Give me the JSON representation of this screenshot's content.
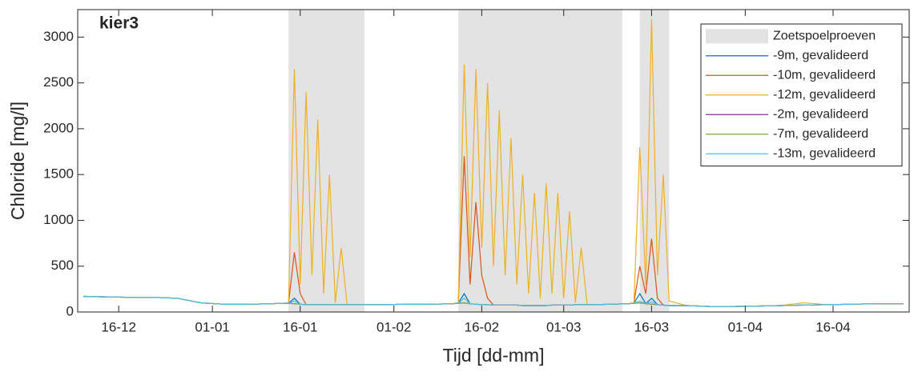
{
  "chart_data": {
    "type": "line",
    "title": "kier3",
    "xlabel": "Tijd [dd-mm]",
    "ylabel": "Chloride [mg/l]",
    "x": [
      "10-12",
      "14-12",
      "18-12",
      "22-12",
      "26-12",
      "30-12",
      "03-01",
      "07-01",
      "11-01",
      "13-01",
      "14-01",
      "15-01",
      "16-01",
      "17-01",
      "18-01",
      "19-01",
      "20-01",
      "21-01",
      "22-01",
      "23-01",
      "24-01",
      "26-01",
      "30-01",
      "03-02",
      "07-02",
      "11-02",
      "12-02",
      "13-02",
      "14-02",
      "15-02",
      "16-02",
      "17-02",
      "18-02",
      "19-02",
      "20-02",
      "21-02",
      "22-02",
      "23-02",
      "24-02",
      "25-02",
      "26-02",
      "27-02",
      "28-02",
      "29-02",
      "01-03",
      "02-03",
      "03-03",
      "04-03",
      "05-03",
      "06-03",
      "09-03",
      "12-03",
      "13-03",
      "14-03",
      "15-03",
      "16-03",
      "17-03",
      "18-03",
      "19-03",
      "22-03",
      "26-03",
      "30-03",
      "03-04",
      "07-04",
      "11-04",
      "15-04",
      "19-04",
      "23-04",
      "28-04"
    ],
    "xlim": [
      "09-12",
      "29-04"
    ],
    "xticks": [
      "16-12",
      "01-01",
      "16-01",
      "01-02",
      "16-02",
      "01-03",
      "16-03",
      "01-04",
      "16-04"
    ],
    "ylim": [
      0,
      3300
    ],
    "yticks": [
      0,
      500,
      1000,
      1500,
      2000,
      2500,
      3000
    ],
    "legend": "northeast",
    "shaded": {
      "name": "Zoetspoelproeven",
      "color": "#e3e3e3",
      "spans": [
        [
          "14-01",
          "27-01"
        ],
        [
          "12-02",
          "11-03"
        ],
        [
          "14-03",
          "19-03"
        ]
      ]
    },
    "series": [
      {
        "name": "-9m, gevalideerd",
        "color": "#0072bd",
        "values": [
          170,
          165,
          160,
          160,
          150,
          100,
          85,
          85,
          90,
          95,
          95,
          150,
          85,
          80,
          80,
          80,
          80,
          80,
          80,
          80,
          80,
          80,
          80,
          85,
          85,
          90,
          95,
          200,
          90,
          85,
          80,
          80,
          75,
          75,
          75,
          75,
          75,
          70,
          70,
          70,
          70,
          70,
          75,
          75,
          75,
          75,
          80,
          80,
          80,
          80,
          85,
          90,
          95,
          200,
          90,
          150,
          80,
          75,
          70,
          70,
          60,
          60,
          65,
          70,
          75,
          80,
          85,
          90,
          90
        ]
      },
      {
        "name": "-10m, gevalideerd",
        "color": "#d95319",
        "values": [
          170,
          165,
          160,
          160,
          150,
          100,
          85,
          85,
          90,
          95,
          100,
          650,
          200,
          80,
          80,
          80,
          80,
          80,
          80,
          80,
          80,
          80,
          80,
          85,
          85,
          90,
          100,
          1700,
          300,
          1200,
          400,
          150,
          75,
          75,
          75,
          75,
          75,
          70,
          70,
          70,
          70,
          70,
          75,
          75,
          75,
          75,
          80,
          80,
          80,
          80,
          85,
          90,
          100,
          500,
          200,
          800,
          150,
          75,
          70,
          70,
          60,
          60,
          65,
          70,
          75,
          80,
          85,
          90,
          90
        ]
      },
      {
        "name": "-12m, gevalideerd",
        "color": "#edb120",
        "values": [
          170,
          165,
          160,
          160,
          150,
          100,
          85,
          85,
          90,
          95,
          100,
          2650,
          300,
          2400,
          400,
          2100,
          200,
          1500,
          100,
          700,
          80,
          80,
          80,
          85,
          85,
          90,
          100,
          2700,
          600,
          2650,
          700,
          2500,
          500,
          2200,
          400,
          1900,
          300,
          1500,
          200,
          1300,
          150,
          1400,
          200,
          1300,
          150,
          1100,
          100,
          700,
          80,
          80,
          85,
          90,
          100,
          1800,
          300,
          3200,
          400,
          1500,
          120,
          70,
          60,
          60,
          65,
          70,
          100,
          80,
          85,
          90,
          90
        ]
      },
      {
        "name": "-2m, gevalideerd",
        "color": "#7e2f8e",
        "values": [
          170,
          165,
          160,
          160,
          150,
          100,
          85,
          85,
          90,
          95,
          95,
          90,
          85,
          80,
          80,
          80,
          80,
          80,
          80,
          80,
          80,
          80,
          80,
          85,
          85,
          90,
          95,
          100,
          90,
          85,
          80,
          80,
          75,
          75,
          75,
          75,
          75,
          70,
          70,
          70,
          70,
          70,
          75,
          75,
          75,
          75,
          80,
          80,
          80,
          80,
          85,
          90,
          95,
          100,
          90,
          85,
          80,
          75,
          70,
          70,
          60,
          60,
          65,
          70,
          75,
          80,
          85,
          90,
          90
        ]
      },
      {
        "name": "-7m, gevalideerd",
        "color": "#77ac30",
        "values": [
          170,
          165,
          160,
          160,
          150,
          100,
          85,
          85,
          90,
          95,
          95,
          90,
          85,
          80,
          80,
          80,
          80,
          80,
          80,
          80,
          80,
          80,
          80,
          85,
          85,
          90,
          95,
          100,
          90,
          85,
          80,
          80,
          75,
          75,
          75,
          75,
          75,
          70,
          70,
          70,
          70,
          70,
          75,
          75,
          75,
          75,
          80,
          80,
          80,
          80,
          85,
          90,
          95,
          100,
          90,
          85,
          80,
          75,
          70,
          70,
          60,
          60,
          65,
          70,
          75,
          80,
          85,
          90,
          90
        ]
      },
      {
        "name": "-13m, gevalideerd",
        "color": "#4dbeee",
        "values": [
          170,
          165,
          160,
          160,
          150,
          100,
          85,
          85,
          90,
          95,
          95,
          120,
          85,
          80,
          80,
          80,
          80,
          80,
          80,
          80,
          80,
          80,
          80,
          85,
          85,
          90,
          95,
          150,
          90,
          85,
          80,
          80,
          75,
          75,
          75,
          75,
          75,
          70,
          70,
          70,
          70,
          70,
          75,
          75,
          75,
          75,
          80,
          80,
          80,
          80,
          85,
          90,
          95,
          120,
          90,
          110,
          80,
          75,
          70,
          70,
          60,
          60,
          65,
          70,
          75,
          80,
          85,
          90,
          90
        ]
      }
    ]
  }
}
